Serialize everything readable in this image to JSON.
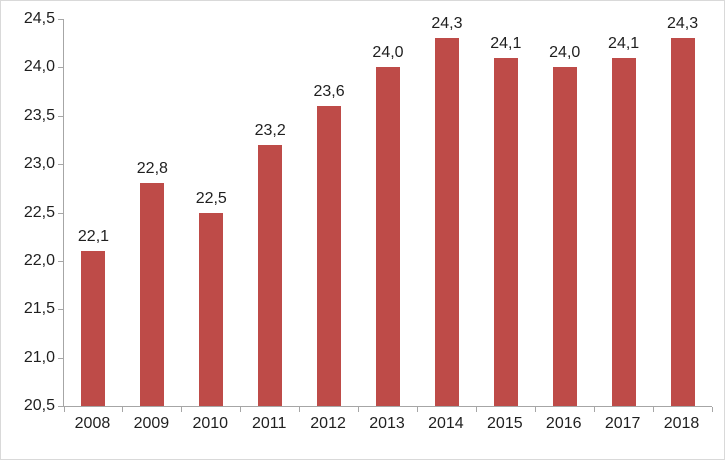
{
  "chart_data": {
    "type": "bar",
    "title": "",
    "xlabel": "",
    "ylabel": "",
    "categories": [
      "2008",
      "2009",
      "2010",
      "2011",
      "2012",
      "2013",
      "2014",
      "2015",
      "2016",
      "2017",
      "2018"
    ],
    "values": [
      22.1,
      22.8,
      22.5,
      23.2,
      23.6,
      24.0,
      24.3,
      24.1,
      24.0,
      24.1,
      24.3
    ],
    "value_labels": [
      "22,1",
      "22,8",
      "22,5",
      "23,2",
      "23,6",
      "24,0",
      "24,3",
      "24,1",
      "24,0",
      "24,1",
      "24,3"
    ],
    "ylim": [
      20.5,
      24.5
    ],
    "ytick_step": 0.5,
    "ytick_labels_top_to_bottom": [
      "24,5",
      "24,0",
      "23,5",
      "23,0",
      "22,5",
      "22,0",
      "21,5",
      "21,0",
      "20,5"
    ],
    "grid": false,
    "legend": "none",
    "data_labels": true,
    "colors": {
      "bar": "#be4b48",
      "axis_line": "#a6a6a6",
      "text": "#1f1f1f",
      "chart_border": "#d9d9d9",
      "background": "#ffffff"
    }
  }
}
